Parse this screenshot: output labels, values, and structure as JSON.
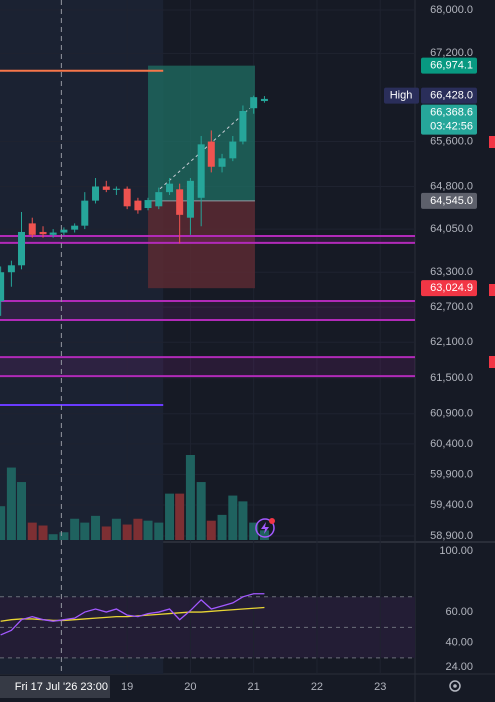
{
  "chart_data": {
    "type": "candlestick",
    "log": true,
    "grid": true,
    "up_color": "#26a69a",
    "down_color": "#ef5350",
    "volume_up_color": "#1f625f",
    "volume_down_color": "#7d2f33",
    "x": [
      17,
      17.17,
      17.33,
      17.5,
      17.67,
      17.83,
      18,
      18.17,
      18.33,
      18.5,
      18.67,
      18.83,
      19,
      19.17,
      19.33,
      19.5,
      19.67,
      19.83,
      20,
      20.17,
      20.33,
      20.5,
      20.67,
      20.83,
      21,
      21.17
    ],
    "open": [
      62800,
      63300,
      63420,
      64150,
      64000,
      63950,
      63990,
      64040,
      64110,
      64550,
      64800,
      64740,
      64760,
      64550,
      64420,
      64450,
      64700,
      64750,
      64250,
      64600,
      65600,
      65150,
      65300,
      65600,
      66200,
      66330
    ],
    "high": [
      63400,
      63500,
      64350,
      64250,
      64100,
      64050,
      64080,
      64150,
      64700,
      64950,
      64900,
      64800,
      64800,
      64600,
      64600,
      64780,
      64950,
      64850,
      64950,
      65700,
      65800,
      65380,
      65700,
      66250,
      66428,
      66420
    ],
    "low": [
      62550,
      63050,
      63350,
      63900,
      63900,
      63900,
      63940,
      63990,
      64050,
      64500,
      64700,
      64650,
      64400,
      64320,
      64380,
      64400,
      64650,
      63800,
      63950,
      64100,
      65050,
      65050,
      65250,
      65550,
      66100,
      66300
    ],
    "close": [
      63300,
      63420,
      64000,
      63950,
      63960,
      63990,
      64040,
      64110,
      64550,
      64800,
      64740,
      64760,
      64450,
      64380,
      64560,
      64700,
      64850,
      64300,
      64900,
      65550,
      65150,
      65300,
      65600,
      66150,
      66400,
      66368.6
    ],
    "volume": [
      35,
      75,
      60,
      18,
      15,
      6,
      8,
      22,
      18,
      25,
      14,
      22,
      16,
      22,
      20,
      18,
      48,
      48,
      88,
      60,
      20,
      26,
      46,
      40,
      18,
      10
    ],
    "xlim": [
      16.99,
      23.55
    ],
    "xticks": [
      19,
      20,
      21,
      22,
      23
    ],
    "ylim": [
      58900,
      68000
    ],
    "yticks": [
      {
        "value": 68000,
        "label": "68,000.0"
      },
      {
        "value": 67200,
        "label": "67,200.0"
      },
      {
        "value": 65600,
        "label": "65,600.0"
      },
      {
        "value": 64800,
        "label": "64,800.0"
      },
      {
        "value": 64050,
        "label": "64,050.0"
      },
      {
        "value": 63300,
        "label": "63,300.0"
      },
      {
        "value": 62700,
        "label": "62,700.0"
      },
      {
        "value": 62100,
        "label": "62,100.0"
      },
      {
        "value": 61500,
        "label": "61,500.0"
      },
      {
        "value": 60900,
        "label": "60,900.0"
      },
      {
        "value": 60400,
        "label": "60,400.0"
      },
      {
        "value": 59900,
        "label": "59,900.0"
      },
      {
        "value": 59400,
        "label": "59,400.0"
      },
      {
        "value": 58900,
        "label": "58,900.0"
      }
    ],
    "crosshair": {
      "x": 17.96,
      "label": "Fri 17 Jul '26 23:00"
    },
    "price_labels": [
      {
        "value": 66974.1,
        "label": "66,974.1",
        "color": "#089981"
      },
      {
        "value": 66428,
        "label": "66,428.0",
        "name": "High",
        "color": "#2a2e5a"
      },
      {
        "value": 66368.6,
        "label": "66,368.6",
        "countdown": "03:42:56",
        "color": "#26a69a"
      },
      {
        "value": 64545,
        "label": "64,545.0",
        "color": "#5d606b"
      },
      {
        "value": 63024.9,
        "label": "63,024.9",
        "color": "#f23645"
      }
    ],
    "position": {
      "x": [
        19.33,
        21.02
      ],
      "target_color": "#1f6f63",
      "stop_color": "#5a2a33"
    },
    "shade_x": [
      16.99,
      19.57
    ],
    "zones": [
      [
        63810,
        63930
      ],
      [
        62480,
        62805
      ],
      [
        61530,
        61850
      ]
    ],
    "zone_color": "#b12ab8",
    "lines": [
      {
        "value": 66880,
        "color": "#f7764a",
        "x": [
          16.99,
          19.57
        ]
      },
      {
        "value": 61045,
        "color": "#6a3bff",
        "x": [
          16.99,
          19.57
        ]
      }
    ],
    "trend": {
      "x": [
        19.52,
        20.94
      ],
      "y": [
        64760,
        66200
      ]
    },
    "rsi": {
      "ylim": [
        24,
        100
      ],
      "yticks": [
        {
          "value": 100,
          "label": "100.00"
        },
        {
          "value": 60,
          "label": "60.00"
        },
        {
          "value": 40,
          "label": "40.00"
        },
        {
          "value": 24,
          "label": "24.00"
        }
      ],
      "bands": [
        70,
        50,
        30
      ],
      "color": "#a259ff",
      "ma_color": "#e8d534",
      "values": [
        45,
        48,
        55,
        57,
        55,
        54,
        55,
        56,
        60,
        62,
        60,
        62,
        58,
        57,
        59,
        60,
        62,
        55,
        61,
        68,
        62,
        64,
        66,
        70,
        72,
        72
      ],
      "ma": [
        54,
        55,
        55.5,
        55.5,
        55,
        54.5,
        54.5,
        55,
        55.5,
        56,
        56.5,
        57,
        57,
        57.5,
        58,
        58.5,
        59,
        59.5,
        60,
        60,
        60.5,
        61,
        61.5,
        62,
        62.5,
        63
      ]
    }
  }
}
